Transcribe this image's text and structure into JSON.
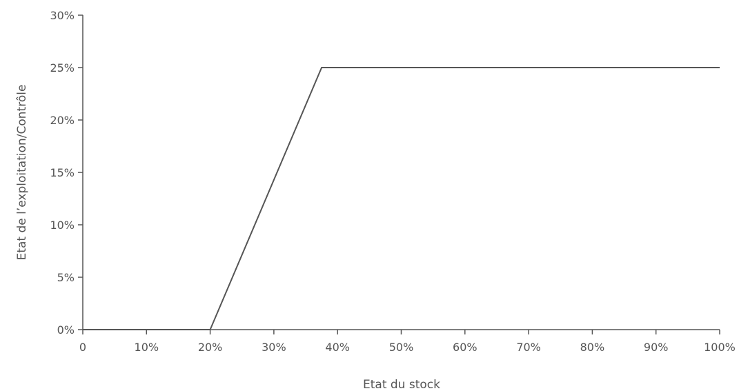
{
  "chart_data": {
    "type": "line",
    "title": "",
    "xlabel": "Etat du stock",
    "ylabel": "Etat de l’exploitation/Contrôle",
    "xlim": [
      0,
      100
    ],
    "ylim": [
      0,
      30
    ],
    "x_ticks": [
      0,
      10,
      20,
      30,
      40,
      50,
      60,
      70,
      80,
      90,
      100
    ],
    "x_tick_labels": [
      "0",
      "10%",
      "20%",
      "30%",
      "40%",
      "50%",
      "60%",
      "70%",
      "80%",
      "90%",
      "100%"
    ],
    "y_ticks": [
      0,
      5,
      10,
      15,
      20,
      25,
      30
    ],
    "y_tick_labels": [
      "0%",
      "5%",
      "10%",
      "15%",
      "20%",
      "25%",
      "30%"
    ],
    "grid": false,
    "legend": "none",
    "series": [
      {
        "x": [
          0,
          20,
          37.5,
          100
        ],
        "y": [
          0,
          0,
          25,
          25
        ],
        "color": "#555555"
      }
    ]
  }
}
